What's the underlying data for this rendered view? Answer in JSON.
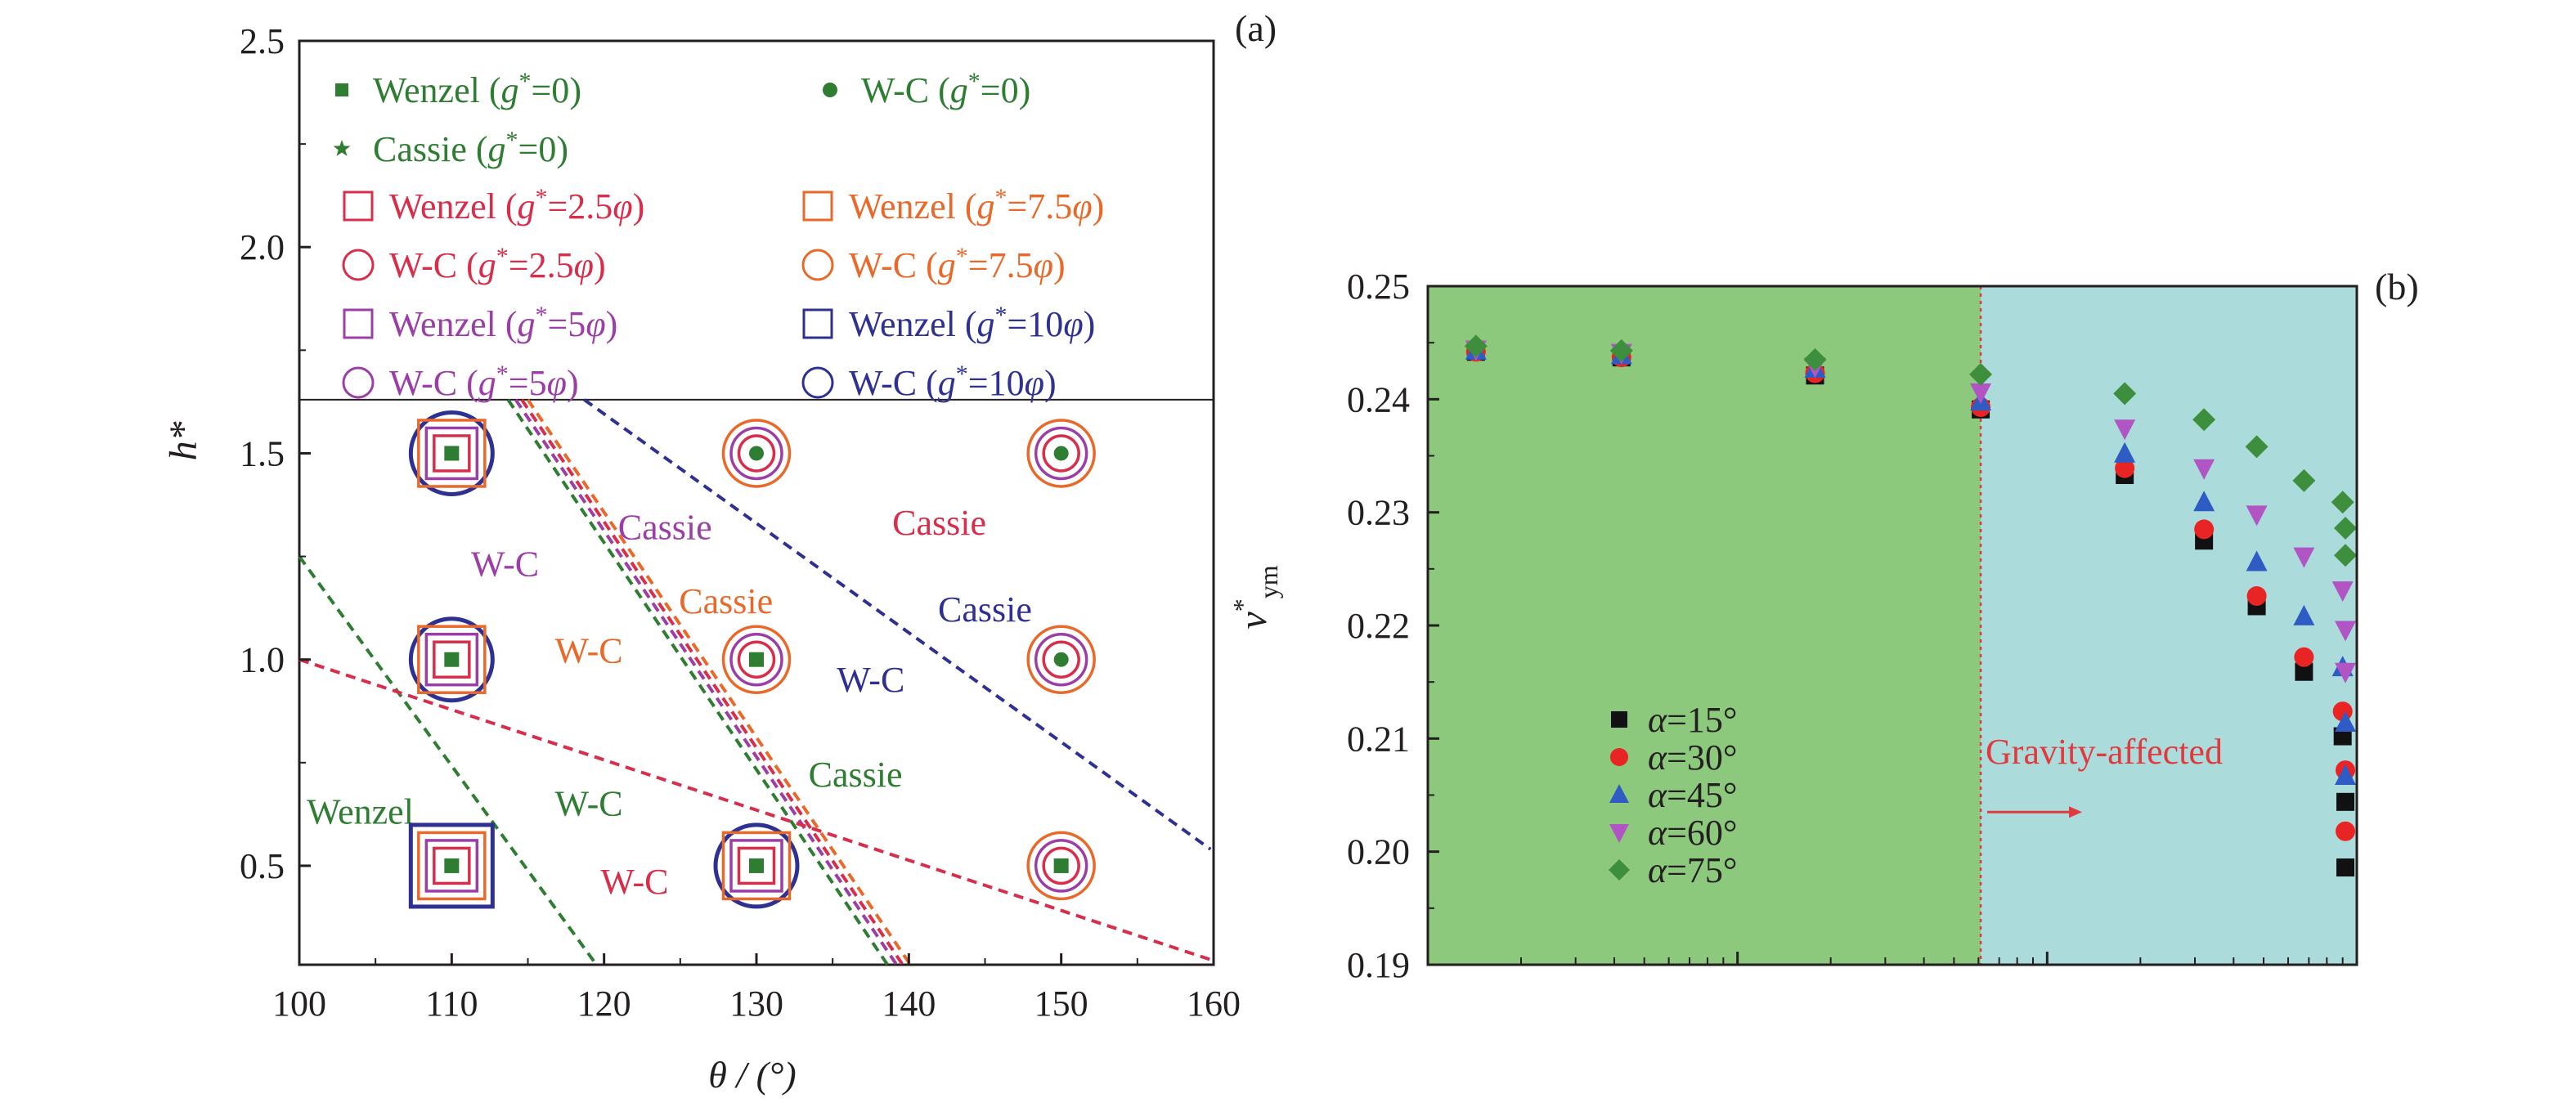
{
  "chart_data": [
    {
      "panel": "(a)",
      "type": "scatter",
      "xlabel": "θ / (°)",
      "ylabel": "h*",
      "xlim": [
        100,
        160
      ],
      "ylim": [
        0.26,
        2.5
      ],
      "xticks": [
        100,
        110,
        120,
        130,
        140,
        150,
        160
      ],
      "yticks": [
        0.5,
        1.0,
        1.5,
        2.0,
        2.5
      ],
      "xtick_labels": [
        "100",
        "110",
        "120",
        "130",
        "140",
        "150",
        "160"
      ],
      "ytick_labels": [
        "0.5",
        "1.0",
        "1.5",
        "2.0",
        "2.5"
      ],
      "legend_separator_y": 1.63,
      "legend": [
        {
          "label": "Wenzel (g*=0)",
          "name": "Wenzel",
          "g": "0",
          "marker": "filled-square",
          "color": "#2e7d32"
        },
        {
          "label": "W-C (g*=0)",
          "name": "W-C",
          "g": "0",
          "marker": "filled-circle",
          "color": "#2e7d32"
        },
        {
          "label": "Cassie (g*=0)",
          "name": "Cassie",
          "g": "0",
          "marker": "filled-star",
          "color": "#2e7d32"
        },
        {
          "label": "Wenzel (g*=2.5φ)",
          "name": "Wenzel",
          "g": "2.5φ",
          "marker": "open-square",
          "color": "#d62e4b"
        },
        {
          "label": "Wenzel (g*=7.5φ)",
          "name": "Wenzel",
          "g": "7.5φ",
          "marker": "open-square",
          "color": "#e8692a"
        },
        {
          "label": "W-C (g*=2.5φ)",
          "name": "W-C",
          "g": "2.5φ",
          "marker": "open-circle",
          "color": "#d62e4b"
        },
        {
          "label": "W-C (g*=7.5φ)",
          "name": "W-C",
          "g": "7.5φ",
          "marker": "open-circle",
          "color": "#e8692a"
        },
        {
          "label": "Wenzel (g*=5φ)",
          "name": "Wenzel",
          "g": "5φ",
          "marker": "open-square",
          "color": "#9b3fa6"
        },
        {
          "label": "Wenzel (g*=10φ)",
          "name": "Wenzel",
          "g": "10φ",
          "marker": "open-square",
          "color": "#2e3192"
        },
        {
          "label": "W-C (g*=5φ)",
          "name": "W-C",
          "g": "5φ",
          "marker": "open-circle",
          "color": "#9b3fa6"
        },
        {
          "label": "W-C (g*=10φ)",
          "name": "W-C",
          "g": "10φ",
          "marker": "open-circle",
          "color": "#2e3192"
        }
      ],
      "points": [
        {
          "x": 110,
          "y": 1.5,
          "states": [
            "Wenzel",
            "Wenzel",
            "Wenzel",
            "Wenzel",
            "W-C"
          ]
        },
        {
          "x": 130,
          "y": 1.5,
          "states": [
            "W-C",
            "W-C",
            "W-C",
            "W-C",
            "Cassie"
          ]
        },
        {
          "x": 150,
          "y": 1.5,
          "states": [
            "W-C",
            "W-C",
            "W-C",
            "W-C",
            "Cassie"
          ]
        },
        {
          "x": 110,
          "y": 1.0,
          "states": [
            "Wenzel",
            "Wenzel",
            "Wenzel",
            "Wenzel",
            "W-C"
          ]
        },
        {
          "x": 130,
          "y": 1.0,
          "states": [
            "Wenzel",
            "W-C",
            "W-C",
            "W-C",
            "Cassie"
          ]
        },
        {
          "x": 150,
          "y": 1.0,
          "states": [
            "W-C",
            "W-C",
            "W-C",
            "W-C",
            "Cassie"
          ]
        },
        {
          "x": 110,
          "y": 0.5,
          "states": [
            "Wenzel",
            "Wenzel",
            "Wenzel",
            "Wenzel",
            "Wenzel"
          ]
        },
        {
          "x": 130,
          "y": 0.5,
          "states": [
            "Wenzel",
            "Wenzel",
            "Wenzel",
            "Wenzel",
            "W-C"
          ]
        },
        {
          "x": 150,
          "y": 0.5,
          "states": [
            "Wenzel",
            "W-C",
            "W-C",
            "W-C",
            "Cassie"
          ]
        }
      ],
      "boundaries": [
        {
          "color": "#2e7d32",
          "from": [
            100,
            1.25
          ],
          "to": [
            119.5,
            0.26
          ]
        },
        {
          "color": "#2e7d32",
          "from": [
            113.7,
            1.63
          ],
          "to": [
            138.6,
            0.26
          ]
        },
        {
          "color": "#9b3fa6",
          "from": [
            114.2,
            1.63
          ],
          "to": [
            139.2,
            0.26
          ]
        },
        {
          "color": "#d62e4b",
          "from": [
            114.6,
            1.63
          ],
          "to": [
            139.6,
            0.26
          ]
        },
        {
          "color": "#e8692a",
          "from": [
            115.0,
            1.63
          ],
          "to": [
            140.1,
            0.26
          ]
        },
        {
          "color": "#2e3192",
          "from": [
            118.7,
            1.63
          ],
          "to": [
            159.8,
            0.54
          ]
        },
        {
          "color": "#d62e4b",
          "from": [
            100,
            1.0
          ],
          "to": [
            160,
            0.27
          ]
        }
      ],
      "region_labels": [
        {
          "text": "W-C",
          "x": 113.5,
          "y": 1.23,
          "color": "#9b3fa6"
        },
        {
          "text": "Cassie",
          "x": 124,
          "y": 1.32,
          "color": "#9b3fa6"
        },
        {
          "text": "Cassie",
          "x": 142,
          "y": 1.33,
          "color": "#d62e4b"
        },
        {
          "text": "Cassie",
          "x": 128,
          "y": 1.14,
          "color": "#e8692a"
        },
        {
          "text": "Cassie",
          "x": 145,
          "y": 1.12,
          "color": "#2e3192"
        },
        {
          "text": "W-C",
          "x": 119,
          "y": 1.02,
          "color": "#e8692a"
        },
        {
          "text": "W-C",
          "x": 137.5,
          "y": 0.95,
          "color": "#2e3192"
        },
        {
          "text": "Cassie",
          "x": 136.5,
          "y": 0.72,
          "color": "#2e7d32"
        },
        {
          "text": "Wenzel",
          "x": 104,
          "y": 0.63,
          "color": "#2e7d32"
        },
        {
          "text": "W-C",
          "x": 119,
          "y": 0.65,
          "color": "#2e7d32"
        },
        {
          "text": "W-C",
          "x": 122,
          "y": 0.46,
          "color": "#d62e4b"
        }
      ],
      "panel_color_order": [
        "#2e7d32",
        "#d62e4b",
        "#9b3fa6",
        "#e8692a",
        "#2e3192"
      ]
    },
    {
      "panel": "(b)",
      "type": "scatter",
      "xlabel": "",
      "ylabel": "v*ym",
      "ylim": [
        0.19,
        0.25
      ],
      "yticks": [
        0.19,
        0.2,
        0.21,
        0.22,
        0.23,
        0.24,
        0.25
      ],
      "ytick_labels": [
        "0.19",
        "0.20",
        "0.21",
        "0.22",
        "0.23",
        "0.24",
        "0.25"
      ],
      "x_scale": "log",
      "xlim": [
        0.01,
        10
      ],
      "x": [
        0.0143,
        0.0422,
        0.178,
        0.61,
        1.78,
        3.21,
        4.75,
        6.75,
        9.0,
        11.5,
        13.7
      ],
      "region_boundary_x": 0.61,
      "regions": [
        {
          "label": "",
          "color": "#8cc97c",
          "from": 0.01,
          "to": 0.61
        },
        {
          "label": "Gravity-affected",
          "color": "#abdcdb",
          "from": 0.61,
          "to": 10
        }
      ],
      "annotation": {
        "text": "Gravity-affected",
        "color": "#e03a3e"
      },
      "legend_placement": "lower-left",
      "series": [
        {
          "name": "α=15°",
          "marker": "square",
          "color": "#111111",
          "values": [
            0.2442,
            0.2437,
            0.2421,
            0.2391,
            0.2333,
            0.2275,
            0.2217,
            0.2159,
            0.2102,
            0.2044,
            0.1986
          ]
        },
        {
          "name": "α=30°",
          "marker": "circle",
          "color": "#e82424",
          "values": [
            0.2442,
            0.2437,
            0.2423,
            0.2393,
            0.2339,
            0.2285,
            0.2226,
            0.2172,
            0.2124,
            0.2072,
            0.2018
          ]
        },
        {
          "name": "α=45°",
          "marker": "triangle-up",
          "color": "#2f5bc4",
          "values": [
            0.2443,
            0.2439,
            0.2427,
            0.2398,
            0.2352,
            0.2309,
            0.2256,
            0.2208,
            0.2163,
            0.2114,
            0.2067
          ]
        },
        {
          "name": "α=60°",
          "marker": "triangle-down",
          "color": "#b255c4",
          "values": [
            0.2444,
            0.2441,
            0.2429,
            0.2406,
            0.2374,
            0.2339,
            0.2298,
            0.2261,
            0.2231,
            0.2196,
            0.2159
          ]
        },
        {
          "name": "α=75°",
          "marker": "diamond",
          "color": "#3d8f3d",
          "values": [
            0.2447,
            0.2443,
            0.2435,
            0.2422,
            0.2405,
            0.2382,
            0.2358,
            0.2328,
            0.2309,
            0.2286,
            0.2262
          ]
        }
      ]
    }
  ]
}
